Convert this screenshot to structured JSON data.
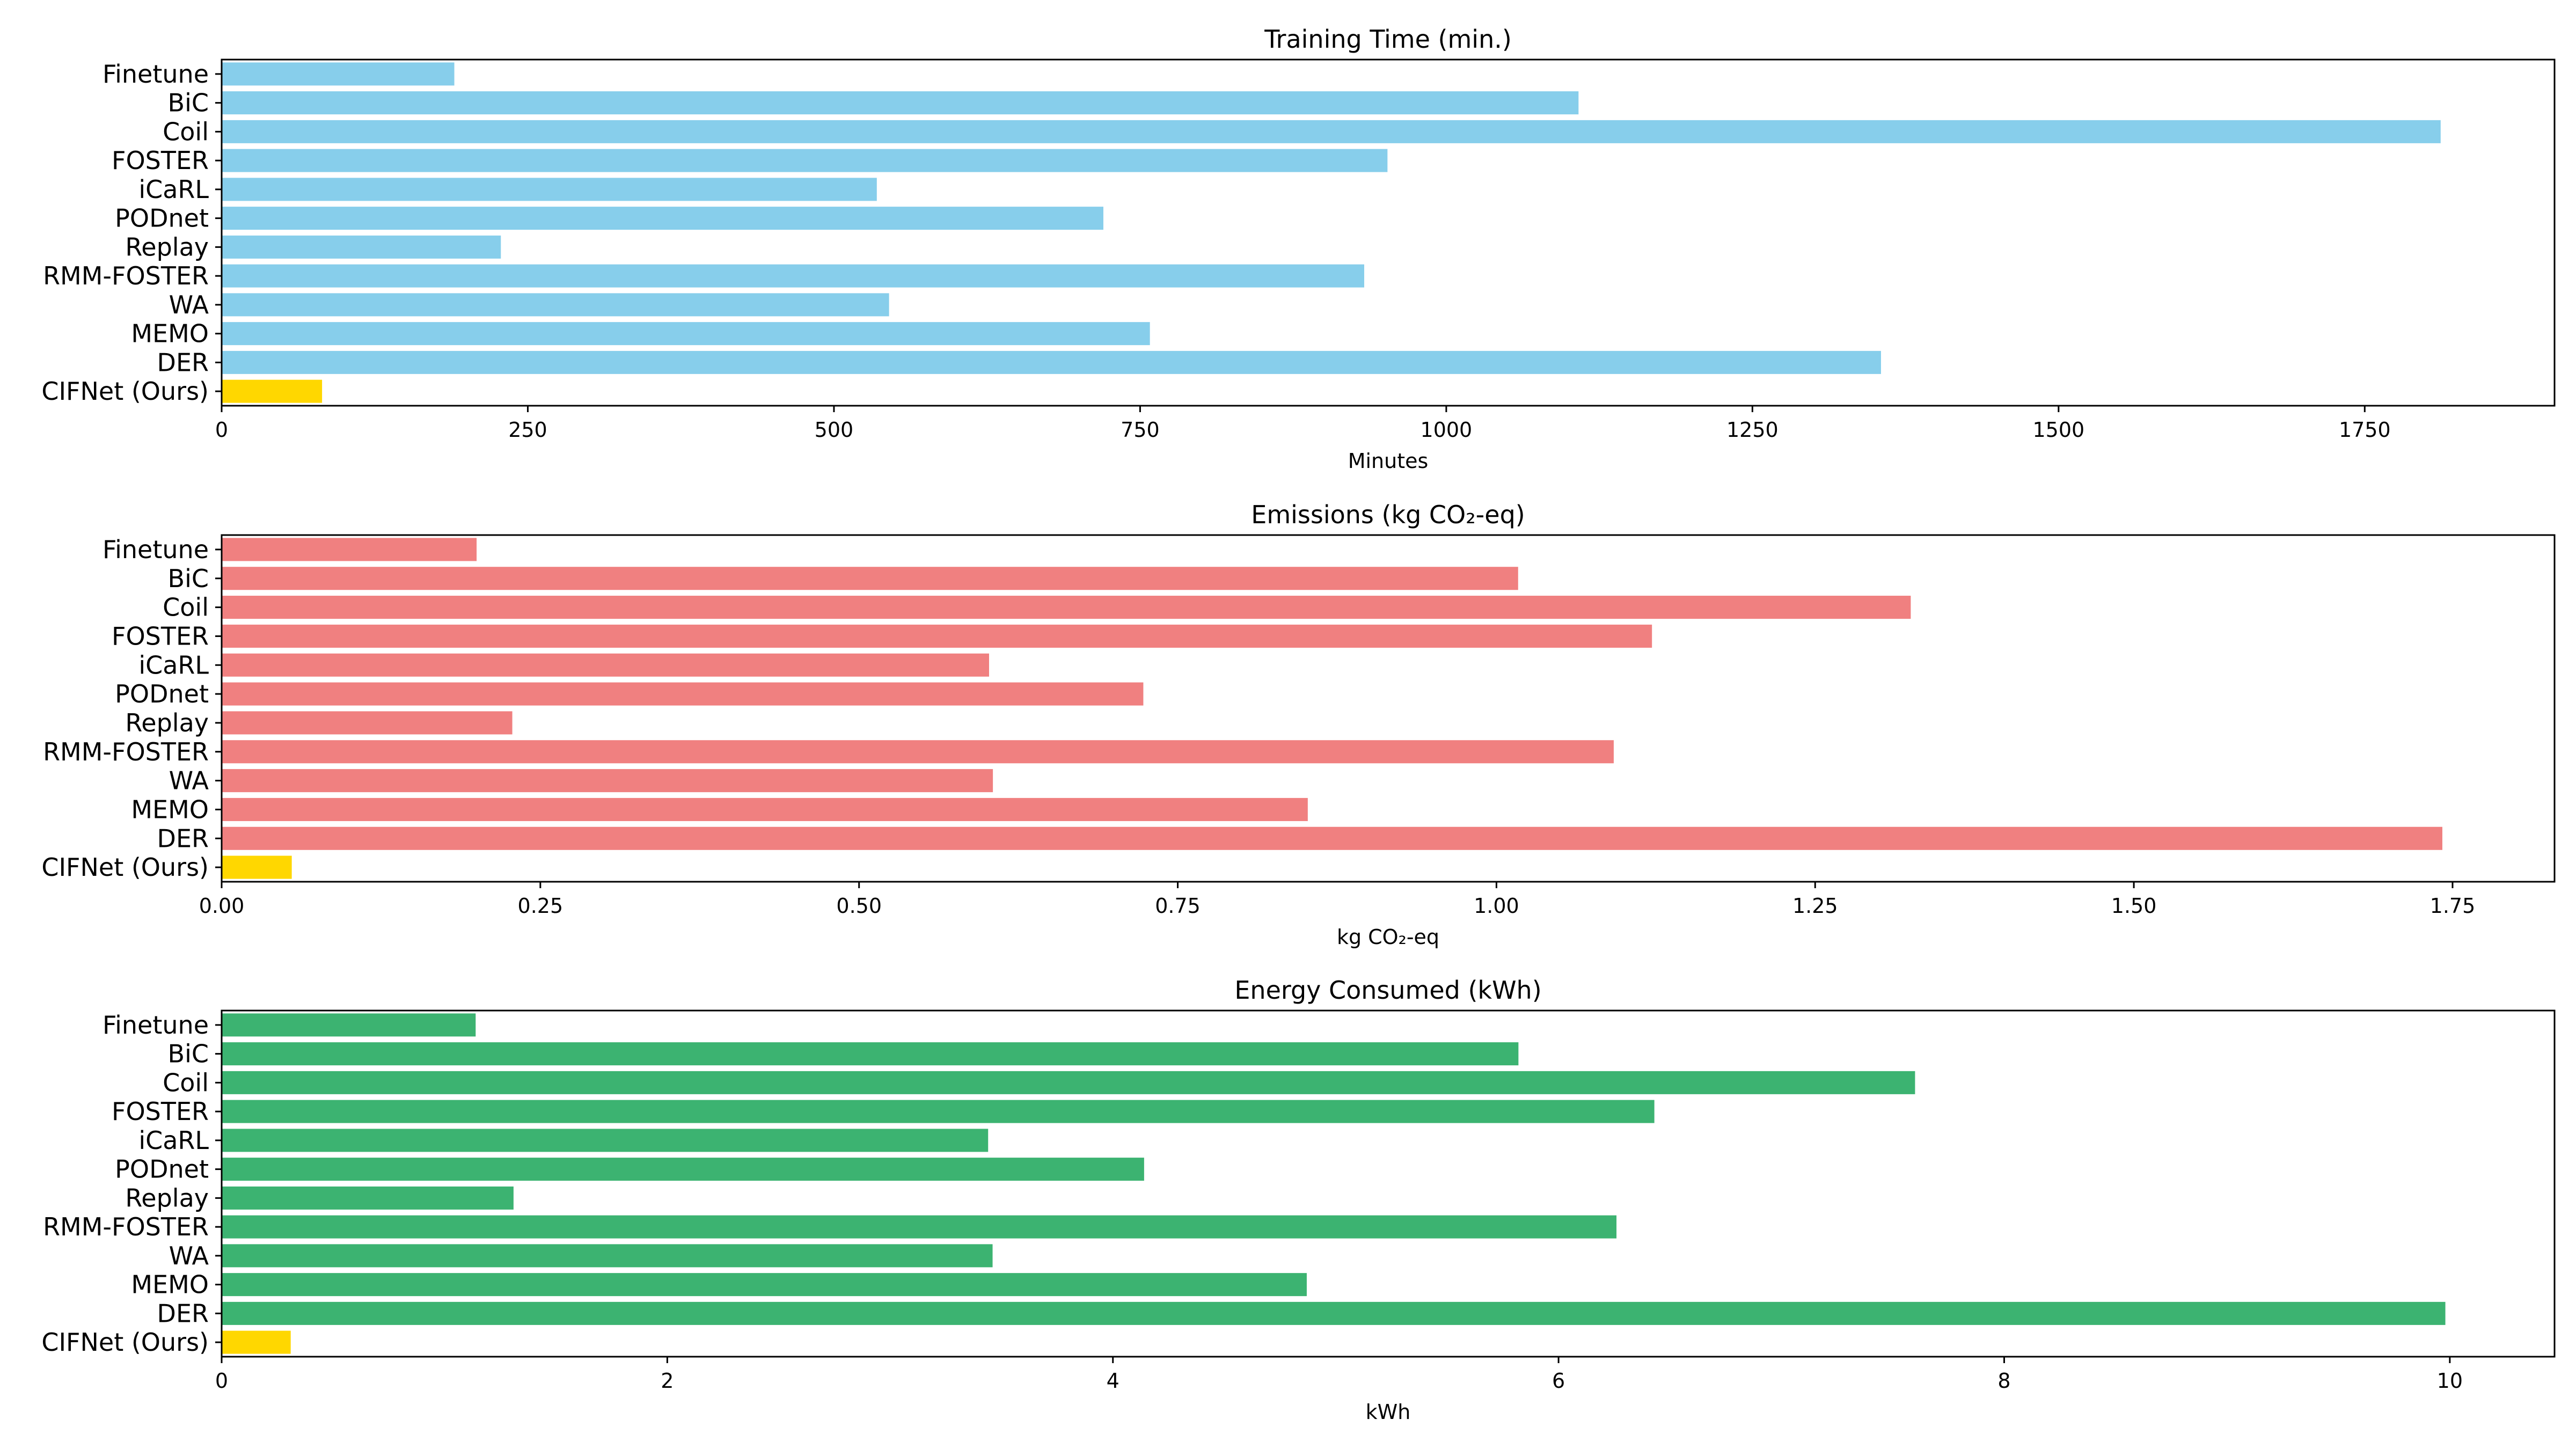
{
  "chart_data": [
    {
      "type": "bar",
      "orientation": "horizontal",
      "title": "Training Time (min.)",
      "xlabel": "Minutes",
      "ylabel": "",
      "categories": [
        "Finetune",
        "BiC",
        "Coil",
        "FOSTER",
        "iCaRL",
        "PODnet",
        "Replay",
        "RMM-FOSTER",
        "WA",
        "MEMO",
        "DER",
        "CIFNet (Ours)"
      ],
      "values": [
        190,
        1108,
        1812,
        952,
        535,
        720,
        228,
        933,
        545,
        758,
        1355,
        82
      ],
      "xlim": [
        0,
        1905
      ],
      "xticks": [
        0,
        250,
        500,
        750,
        1000,
        1250,
        1500,
        1750
      ],
      "xtick_labels": [
        "0",
        "250",
        "500",
        "750",
        "1000",
        "1250",
        "1500",
        "1750"
      ],
      "bar_color": "#87CEEB",
      "highlight_color": "#FFD700",
      "highlight_category": "CIFNet (Ours)",
      "grid": false
    },
    {
      "type": "bar",
      "orientation": "horizontal",
      "title": "Emissions (kg CO₂-eq)",
      "xlabel": "kg CO₂-eq",
      "ylabel": "",
      "categories": [
        "Finetune",
        "BiC",
        "Coil",
        "FOSTER",
        "iCaRL",
        "PODnet",
        "Replay",
        "RMM-FOSTER",
        "WA",
        "MEMO",
        "DER",
        "CIFNet (Ours)"
      ],
      "values": [
        0.2,
        1.017,
        1.325,
        1.122,
        0.602,
        0.723,
        0.228,
        1.092,
        0.605,
        0.852,
        1.742,
        0.055
      ],
      "xlim": [
        0,
        1.83
      ],
      "xticks": [
        0,
        0.25,
        0.5,
        0.75,
        1.0,
        1.25,
        1.5,
        1.75
      ],
      "xtick_labels": [
        "0.00",
        "0.25",
        "0.50",
        "0.75",
        "1.00",
        "1.25",
        "1.50",
        "1.75"
      ],
      "bar_color": "#F08080",
      "highlight_color": "#FFD700",
      "highlight_category": "CIFNet (Ours)",
      "grid": false
    },
    {
      "type": "bar",
      "orientation": "horizontal",
      "title": "Energy Consumed (kWh)",
      "xlabel": "kWh",
      "ylabel": "",
      "categories": [
        "Finetune",
        "BiC",
        "Coil",
        "FOSTER",
        "iCaRL",
        "PODnet",
        "Replay",
        "RMM-FOSTER",
        "WA",
        "MEMO",
        "DER",
        "CIFNet (Ours)"
      ],
      "values": [
        1.14,
        5.82,
        7.6,
        6.43,
        3.44,
        4.14,
        1.31,
        6.26,
        3.46,
        4.87,
        9.98,
        0.31
      ],
      "xlim": [
        0,
        10.47
      ],
      "xticks": [
        0,
        2,
        4,
        6,
        8,
        10
      ],
      "xtick_labels": [
        "0",
        "2",
        "4",
        "6",
        "8",
        "10"
      ],
      "bar_color": "#3CB371",
      "highlight_color": "#FFD700",
      "highlight_category": "CIFNet (Ours)",
      "grid": false
    }
  ]
}
